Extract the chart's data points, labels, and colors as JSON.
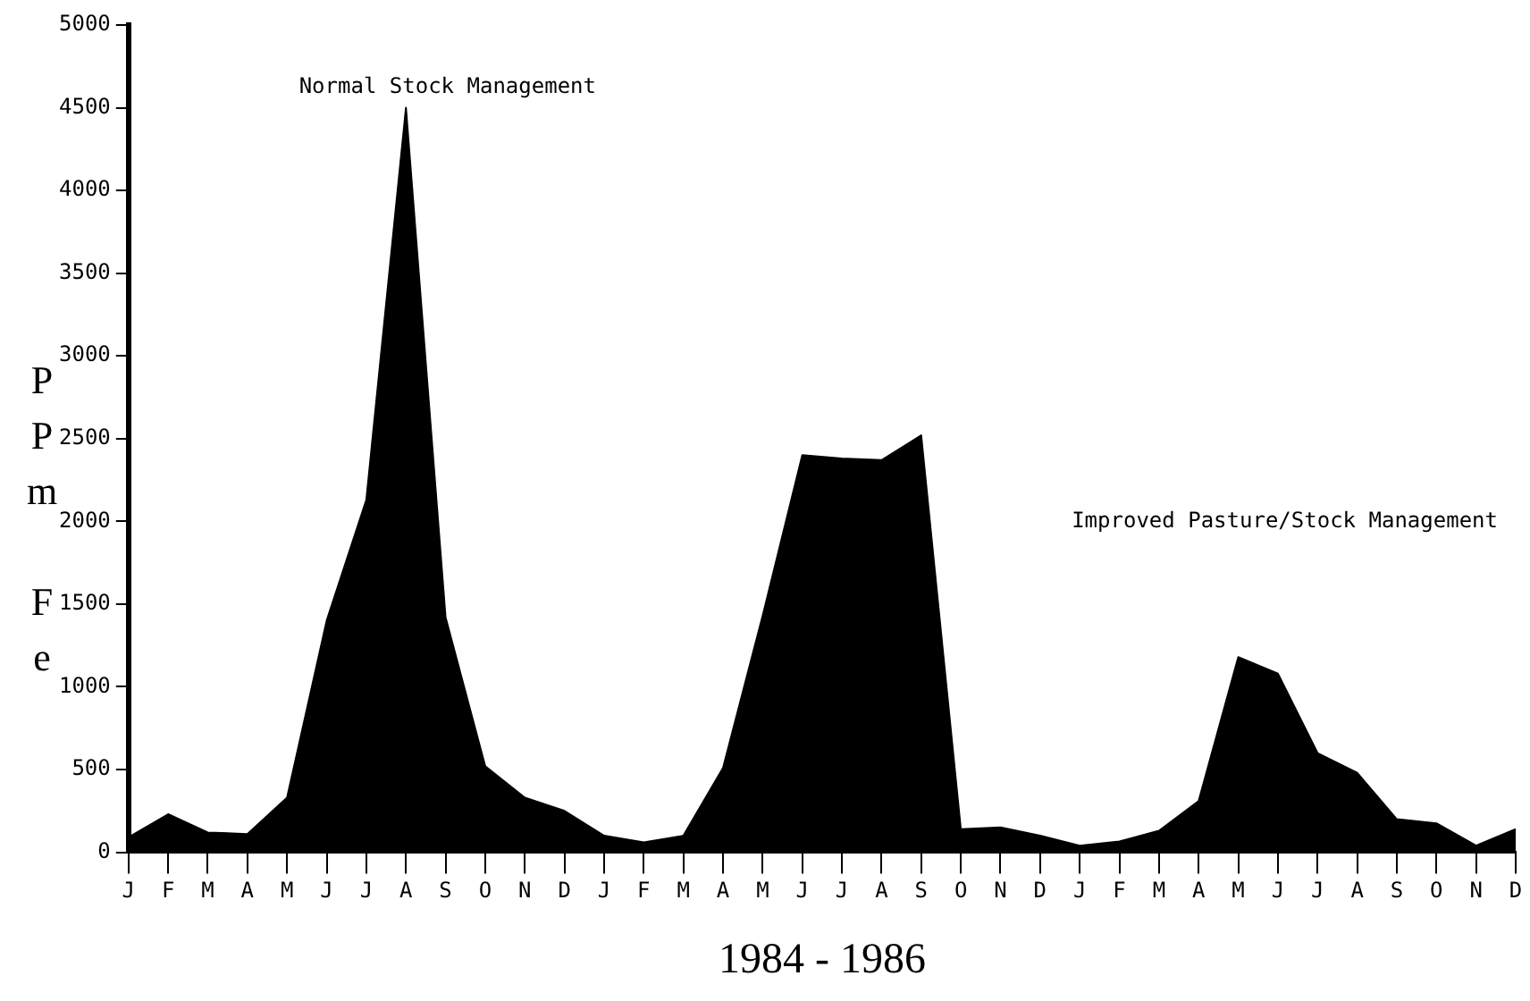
{
  "chart_data": {
    "type": "area",
    "xlabel": "1984 - 1986",
    "ylabel": "PPm Fe",
    "categories": [
      "J",
      "F",
      "M",
      "A",
      "M",
      "J",
      "J",
      "A",
      "S",
      "O",
      "N",
      "D",
      "J",
      "F",
      "M",
      "A",
      "M",
      "J",
      "J",
      "A",
      "S",
      "O",
      "N",
      "D",
      "J",
      "F",
      "M",
      "A",
      "M",
      "J",
      "J",
      "A",
      "S",
      "O",
      "N",
      "D"
    ],
    "series": [
      {
        "color": "#000000",
        "values": [
          90,
          230,
          120,
          110,
          330,
          1400,
          2130,
          4500,
          1420,
          520,
          330,
          250,
          100,
          60,
          100,
          510,
          1430,
          2400,
          2380,
          2370,
          2520,
          140,
          150,
          100,
          40,
          65,
          130,
          310,
          1180,
          1080,
          600,
          480,
          200,
          175,
          40,
          140
        ]
      }
    ],
    "ylim": [
      0,
      5000
    ],
    "yticks": [
      0,
      500,
      1000,
      1500,
      2000,
      2500,
      3000,
      3500,
      4000,
      4500,
      5000
    ],
    "grid": false,
    "legend": false,
    "annotations": [
      "Normal Stock Management",
      "Improved Pasture/Stock Management"
    ]
  }
}
